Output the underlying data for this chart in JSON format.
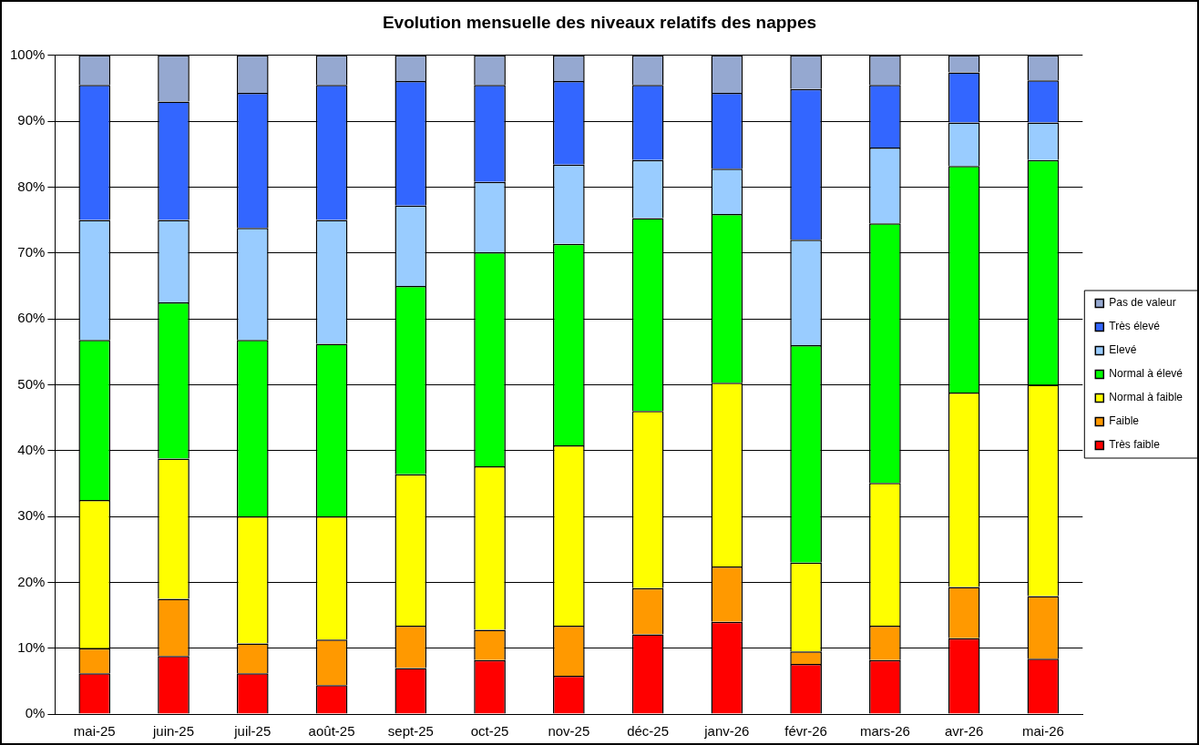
{
  "chart_data": {
    "type": "bar",
    "title": "Evolution mensuelle des niveaux relatifs des nappes",
    "stacked": true,
    "grid": "y",
    "legend": "right",
    "categories": [
      "mai-25",
      "juin-25",
      "juil-25",
      "août-25",
      "sept-25",
      "oct-25",
      "nov-25",
      "déc-25",
      "janv-26",
      "févr-26",
      "mars-26",
      "avr-26",
      "mai-26"
    ],
    "ylim": [
      0,
      100
    ],
    "yticks": [
      {
        "value": 0,
        "label": "0%"
      },
      {
        "value": 10,
        "label": "10%"
      },
      {
        "value": 20,
        "label": "20%"
      },
      {
        "value": 30,
        "label": "30%"
      },
      {
        "value": 40,
        "label": "40%"
      },
      {
        "value": 50,
        "label": "50%"
      },
      {
        "value": 60,
        "label": "60%"
      },
      {
        "value": 70,
        "label": "70%"
      },
      {
        "value": 80,
        "label": "80%"
      },
      {
        "value": 90,
        "label": "90%"
      },
      {
        "value": 100,
        "label": "100%"
      }
    ],
    "series": [
      {
        "name": "Très faible",
        "color": "#ff0000",
        "values": [
          6.2,
          8.8,
          6.2,
          4.4,
          7,
          8.2,
          5.8,
          12.1,
          14,
          7.6,
          8.2,
          11.5,
          8.4
        ]
      },
      {
        "name": "Faible",
        "color": "#ff9900",
        "values": [
          3.8,
          8.7,
          4.5,
          6.9,
          6.4,
          4.6,
          7.6,
          7,
          8.4,
          1.9,
          5.2,
          7.8,
          9.5
        ]
      },
      {
        "name": "Normal à faible",
        "color": "#ffff00",
        "values": [
          22.5,
          21.3,
          19.3,
          18.7,
          23,
          24.8,
          27.4,
          26.9,
          27.9,
          13.5,
          21.7,
          29.5,
          32.1
        ]
      },
      {
        "name": "Normal à élevé",
        "color": "#00ff00",
        "values": [
          24.3,
          23.7,
          26.8,
          26.2,
          28.6,
          32.5,
          30.6,
          29.3,
          25.6,
          33,
          39.4,
          34.4,
          34.1
        ]
      },
      {
        "name": "Elevé",
        "color": "#99ccff",
        "values": [
          18.2,
          12.5,
          17,
          18.8,
          12.2,
          10.7,
          12,
          8.8,
          6.9,
          16,
          11.5,
          6.6,
          5.7
        ]
      },
      {
        "name": "Très élevé",
        "color": "#3366ff",
        "values": [
          20.5,
          18,
          20.5,
          20.5,
          18.9,
          14.7,
          12.7,
          11.4,
          11.5,
          22.9,
          9.5,
          7.6,
          6.4
        ]
      },
      {
        "name": "Pas de valeur",
        "color": "#95a8d0",
        "values": [
          4.5,
          7,
          5.7,
          4.5,
          3.9,
          4.5,
          3.9,
          4.5,
          5.7,
          5.1,
          4.5,
          2.6,
          3.8
        ]
      }
    ]
  }
}
